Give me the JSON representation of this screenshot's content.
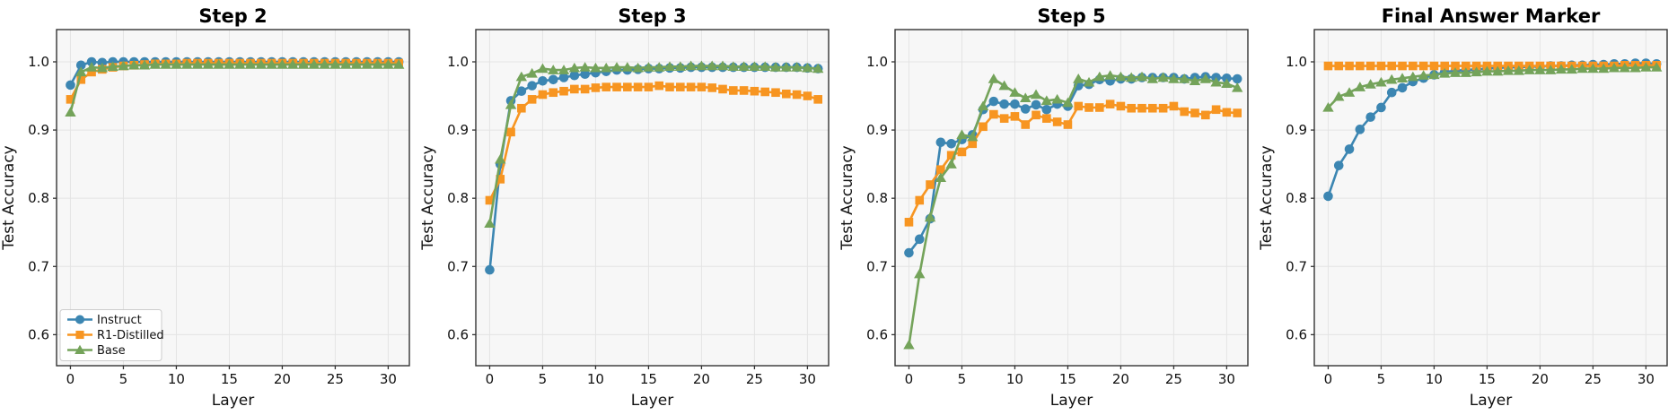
{
  "figure": {
    "plot_bg": "#f7f7f7",
    "grid_color": "#e4e4e4",
    "spine_color": "#333333",
    "text_color": "#111111",
    "series_colors": {
      "instruct": "#3c86b2",
      "r1_distilled": "#f79521",
      "base": "#74a35a"
    }
  },
  "legend": {
    "position": "lower-left",
    "entries": [
      {
        "label": "Instruct",
        "marker": "circle",
        "color": "#3c86b2"
      },
      {
        "label": "R1-Distilled",
        "marker": "square",
        "color": "#f79521"
      },
      {
        "label": "Base",
        "marker": "triangle_up",
        "color": "#74a35a"
      }
    ]
  },
  "chart_data": [
    {
      "type": "line",
      "title": "Step 2",
      "xlabel": "Layer",
      "ylabel": "Test Accuracy",
      "xticks": [
        0,
        5,
        10,
        15,
        20,
        25,
        30
      ],
      "yticks": [
        0.6,
        0.7,
        0.8,
        0.9,
        1.0
      ],
      "ylim": [
        0.5545,
        1.0473
      ],
      "xlim": [
        -1.31,
        32.0
      ],
      "grid": true,
      "legend": true,
      "x": [
        0,
        1,
        2,
        3,
        4,
        5,
        6,
        7,
        8,
        9,
        10,
        11,
        12,
        13,
        14,
        15,
        16,
        17,
        18,
        19,
        20,
        21,
        22,
        23,
        24,
        25,
        26,
        27,
        28,
        29,
        30,
        31
      ],
      "series": [
        {
          "name": "Instruct",
          "marker": "circle",
          "color": "#3c86b2",
          "values": [
            0.966,
            0.995,
            1.0,
            0.999,
            1.0,
            1.0,
            1.0,
            1.0,
            1.0,
            1.0,
            1.0,
            1.0,
            1.0,
            1.0,
            1.0,
            1.0,
            1.0,
            1.0,
            1.0,
            1.0,
            1.0,
            1.0,
            1.0,
            1.0,
            1.0,
            1.0,
            1.0,
            1.0,
            1.0,
            1.0,
            1.0,
            1.0
          ]
        },
        {
          "name": "R1-Distilled",
          "marker": "square",
          "color": "#f79521",
          "values": [
            0.945,
            0.974,
            0.985,
            0.989,
            0.992,
            0.994,
            0.995,
            0.996,
            0.997,
            0.997,
            0.997,
            0.998,
            0.998,
            0.998,
            0.998,
            0.998,
            0.998,
            0.998,
            0.998,
            0.998,
            0.998,
            0.998,
            0.998,
            0.998,
            0.998,
            0.998,
            0.998,
            0.998,
            0.998,
            0.998,
            0.998,
            0.998
          ]
        },
        {
          "name": "Base",
          "marker": "triangle_up",
          "color": "#74a35a",
          "values": [
            0.926,
            0.985,
            0.992,
            0.991,
            0.993,
            0.994,
            0.995,
            0.995,
            0.996,
            0.996,
            0.996,
            0.996,
            0.996,
            0.996,
            0.996,
            0.996,
            0.996,
            0.996,
            0.996,
            0.996,
            0.996,
            0.996,
            0.996,
            0.996,
            0.996,
            0.996,
            0.996,
            0.996,
            0.996,
            0.996,
            0.996,
            0.996
          ]
        }
      ]
    },
    {
      "type": "line",
      "title": "Step 3",
      "xlabel": "Layer",
      "ylabel": "Test Accuracy",
      "xticks": [
        0,
        5,
        10,
        15,
        20,
        25,
        30
      ],
      "yticks": [
        0.6,
        0.7,
        0.8,
        0.9,
        1.0
      ],
      "ylim": [
        0.5545,
        1.0473
      ],
      "xlim": [
        -1.31,
        32.0
      ],
      "grid": true,
      "legend": false,
      "x": [
        0,
        1,
        2,
        3,
        4,
        5,
        6,
        7,
        8,
        9,
        10,
        11,
        12,
        13,
        14,
        15,
        16,
        17,
        18,
        19,
        20,
        21,
        22,
        23,
        24,
        25,
        26,
        27,
        28,
        29,
        30,
        31
      ],
      "series": [
        {
          "name": "Instruct",
          "marker": "circle",
          "color": "#3c86b2",
          "values": [
            0.695,
            0.85,
            0.943,
            0.957,
            0.965,
            0.972,
            0.974,
            0.977,
            0.98,
            0.982,
            0.984,
            0.986,
            0.988,
            0.988,
            0.989,
            0.99,
            0.99,
            0.991,
            0.991,
            0.992,
            0.992,
            0.992,
            0.992,
            0.992,
            0.992,
            0.992,
            0.992,
            0.992,
            0.992,
            0.992,
            0.991,
            0.99
          ]
        },
        {
          "name": "R1-Distilled",
          "marker": "square",
          "color": "#f79521",
          "values": [
            0.797,
            0.828,
            0.897,
            0.932,
            0.945,
            0.952,
            0.955,
            0.957,
            0.96,
            0.96,
            0.962,
            0.963,
            0.963,
            0.963,
            0.963,
            0.963,
            0.965,
            0.963,
            0.963,
            0.963,
            0.963,
            0.962,
            0.96,
            0.958,
            0.958,
            0.957,
            0.956,
            0.955,
            0.953,
            0.952,
            0.95,
            0.945
          ]
        },
        {
          "name": "Base",
          "marker": "triangle_up",
          "color": "#74a35a",
          "values": [
            0.763,
            0.857,
            0.937,
            0.978,
            0.983,
            0.99,
            0.988,
            0.988,
            0.991,
            0.992,
            0.991,
            0.991,
            0.992,
            0.992,
            0.991,
            0.992,
            0.992,
            0.993,
            0.993,
            0.994,
            0.994,
            0.994,
            0.994,
            0.993,
            0.993,
            0.993,
            0.993,
            0.992,
            0.992,
            0.992,
            0.991,
            0.99
          ]
        }
      ]
    },
    {
      "type": "line",
      "title": "Step 5",
      "xlabel": "Layer",
      "ylabel": "Test Accuracy",
      "xticks": [
        0,
        5,
        10,
        15,
        20,
        25,
        30
      ],
      "yticks": [
        0.6,
        0.7,
        0.8,
        0.9,
        1.0
      ],
      "ylim": [
        0.5545,
        1.0473
      ],
      "xlim": [
        -1.31,
        32.0
      ],
      "grid": true,
      "legend": false,
      "x": [
        0,
        1,
        2,
        3,
        4,
        5,
        6,
        7,
        8,
        9,
        10,
        11,
        12,
        13,
        14,
        15,
        16,
        17,
        18,
        19,
        20,
        21,
        22,
        23,
        24,
        25,
        26,
        27,
        28,
        29,
        30,
        31
      ],
      "series": [
        {
          "name": "Instruct",
          "marker": "circle",
          "color": "#3c86b2",
          "values": [
            0.72,
            0.74,
            0.77,
            0.882,
            0.88,
            0.886,
            0.893,
            0.93,
            0.942,
            0.938,
            0.938,
            0.931,
            0.937,
            0.93,
            0.938,
            0.935,
            0.965,
            0.967,
            0.974,
            0.972,
            0.975,
            0.975,
            0.977,
            0.977,
            0.977,
            0.977,
            0.975,
            0.977,
            0.978,
            0.977,
            0.976,
            0.975
          ]
        },
        {
          "name": "R1-Distilled",
          "marker": "square",
          "color": "#f79521",
          "values": [
            0.765,
            0.797,
            0.82,
            0.842,
            0.863,
            0.868,
            0.88,
            0.905,
            0.923,
            0.917,
            0.92,
            0.908,
            0.922,
            0.917,
            0.912,
            0.908,
            0.935,
            0.933,
            0.933,
            0.938,
            0.935,
            0.932,
            0.932,
            0.932,
            0.932,
            0.935,
            0.927,
            0.925,
            0.922,
            0.93,
            0.926,
            0.925
          ]
        },
        {
          "name": "Base",
          "marker": "triangle_up",
          "color": "#74a35a",
          "values": [
            0.585,
            0.689,
            0.772,
            0.83,
            0.85,
            0.893,
            0.89,
            0.935,
            0.975,
            0.965,
            0.955,
            0.947,
            0.952,
            0.943,
            0.945,
            0.94,
            0.975,
            0.97,
            0.978,
            0.98,
            0.978,
            0.977,
            0.978,
            0.975,
            0.977,
            0.975,
            0.975,
            0.972,
            0.975,
            0.97,
            0.968,
            0.962
          ]
        }
      ]
    },
    {
      "type": "line",
      "title": "Final Answer Marker",
      "xlabel": "Layer",
      "ylabel": "Test Accuracy",
      "xticks": [
        0,
        5,
        10,
        15,
        20,
        25,
        30
      ],
      "yticks": [
        0.6,
        0.7,
        0.8,
        0.9,
        1.0
      ],
      "ylim": [
        0.5545,
        1.0473
      ],
      "xlim": [
        -1.31,
        32.0
      ],
      "grid": true,
      "legend": false,
      "x": [
        0,
        1,
        2,
        3,
        4,
        5,
        6,
        7,
        8,
        9,
        10,
        11,
        12,
        13,
        14,
        15,
        16,
        17,
        18,
        19,
        20,
        21,
        22,
        23,
        24,
        25,
        26,
        27,
        28,
        29,
        30,
        31
      ],
      "series": [
        {
          "name": "Instruct",
          "marker": "circle",
          "color": "#3c86b2",
          "values": [
            0.803,
            0.848,
            0.872,
            0.901,
            0.919,
            0.933,
            0.955,
            0.962,
            0.971,
            0.976,
            0.981,
            0.985,
            0.987,
            0.988,
            0.989,
            0.99,
            0.991,
            0.992,
            0.992,
            0.993,
            0.993,
            0.994,
            0.994,
            0.995,
            0.995,
            0.996,
            0.996,
            0.997,
            0.997,
            0.998,
            0.998,
            0.997
          ]
        },
        {
          "name": "R1-Distilled",
          "marker": "square",
          "color": "#f79521",
          "values": [
            0.994,
            0.994,
            0.994,
            0.994,
            0.994,
            0.994,
            0.994,
            0.994,
            0.994,
            0.994,
            0.994,
            0.994,
            0.994,
            0.994,
            0.994,
            0.994,
            0.994,
            0.994,
            0.994,
            0.994,
            0.994,
            0.994,
            0.994,
            0.994,
            0.994,
            0.994,
            0.994,
            0.994,
            0.995,
            0.995,
            0.995,
            0.995
          ]
        },
        {
          "name": "Base",
          "marker": "triangle_up",
          "color": "#74a35a",
          "values": [
            0.933,
            0.949,
            0.955,
            0.963,
            0.967,
            0.97,
            0.974,
            0.976,
            0.978,
            0.98,
            0.981,
            0.983,
            0.984,
            0.984,
            0.985,
            0.986,
            0.986,
            0.987,
            0.987,
            0.988,
            0.988,
            0.988,
            0.989,
            0.989,
            0.99,
            0.99,
            0.99,
            0.991,
            0.991,
            0.991,
            0.992,
            0.992
          ]
        }
      ]
    }
  ]
}
